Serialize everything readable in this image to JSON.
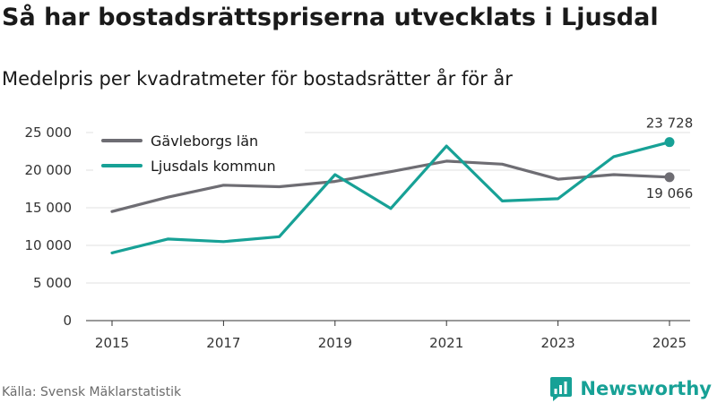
{
  "title": "Så har bostadsrättspriserna utvecklats i Ljusdal",
  "subtitle": "Medelpris per kvadratmeter för bostadsrätter år för år",
  "source": "Källa: Svensk Mäklarstatistik",
  "brand": {
    "name": "Newsworthy",
    "icon": "newsworthy-logo-icon",
    "color": "#17a196"
  },
  "chart_data": {
    "type": "line",
    "title": "Så har bostadsrättspriserna utvecklats i Ljusdal",
    "subtitle": "Medelpris per kvadratmeter för bostadsrätter år för år",
    "xlabel": "",
    "ylabel": "",
    "x": [
      2015,
      2016,
      2017,
      2018,
      2019,
      2020,
      2021,
      2022,
      2023,
      2024,
      2025
    ],
    "xticks": [
      2015,
      2017,
      2019,
      2021,
      2023,
      2025
    ],
    "xtick_labels": [
      "2015",
      "2017",
      "2019",
      "2021",
      "2023",
      "2025"
    ],
    "ylim": [
      0,
      25000
    ],
    "yticks": [
      0,
      5000,
      10000,
      15000,
      20000,
      25000
    ],
    "ytick_labels": [
      "0",
      "5 000",
      "10 000",
      "15 000",
      "20 000",
      "25 000"
    ],
    "grid": true,
    "legend_position": "top-left",
    "series": [
      {
        "name": "Gävleborgs län",
        "color": "#6e6d73",
        "values": [
          14500,
          16400,
          18000,
          17800,
          18500,
          19800,
          21200,
          20800,
          18800,
          19400,
          19066
        ],
        "end_label": "19 066",
        "end_label_position": "below"
      },
      {
        "name": "Ljusdals kommun",
        "color": "#17a196",
        "values": [
          9000,
          10850,
          10500,
          11150,
          19400,
          14900,
          23200,
          15900,
          16200,
          21800,
          23728
        ],
        "end_label": "23 728",
        "end_label_position": "above"
      }
    ]
  }
}
